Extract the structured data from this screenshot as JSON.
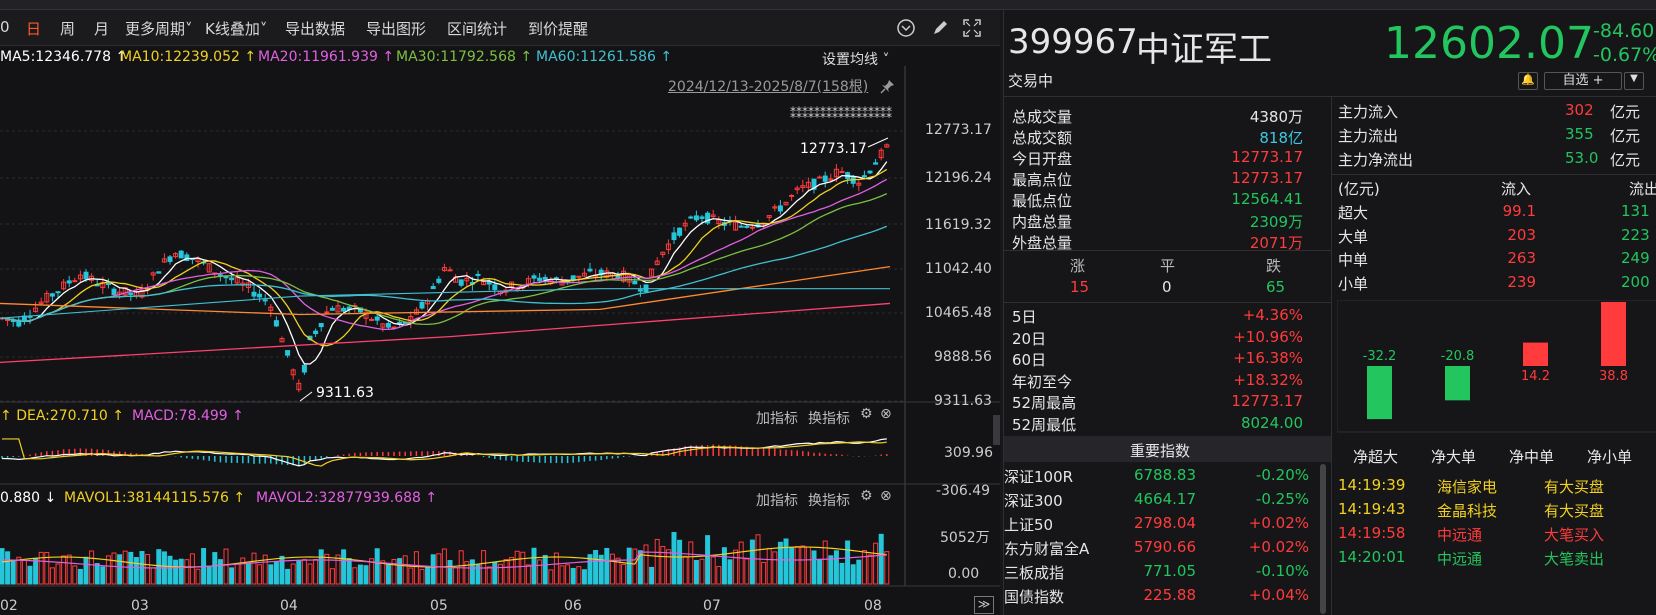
{
  "toolbar": {
    "items": [
      "0",
      "日",
      "周",
      "月",
      "更多周期",
      "K线叠加",
      "导出数据",
      "导出图形",
      "区间统计",
      "到价提醒"
    ],
    "active": "日"
  },
  "chart": {
    "ma_legend": {
      "ma5": "MA5:12346.778",
      "ma10": "MA10:12239.052",
      "ma20": "MA20:11961.939",
      "ma30": "MA30:11792.568",
      "ma60": "MA60:11261.586",
      "setting": "设置均线"
    },
    "range_label": "2024/12/13-2025/8/7(158根)",
    "high_mark": "12773.17",
    "low_mark": "9311.63",
    "price_ticks": [
      "12773.17",
      "12196.24",
      "11619.32",
      "11042.40",
      "10465.48",
      "9888.56",
      "9311.63"
    ],
    "macd_legend": {
      "dea": "DEA:270.710",
      "macd": "MACD:78.499",
      "add": "加指标",
      "swap": "换指标"
    },
    "macd_ticks": [
      "309.96",
      "-306.49"
    ],
    "vol_legend": {
      "vol": "0.880",
      "mavol1": "MAVOL1:38144115.576",
      "mavol2": "MAVOL2:32877939.688",
      "add": "加指标",
      "swap": "换指标"
    },
    "vol_ticks": [
      "5052万",
      "0.00"
    ],
    "x_ticks": [
      "02",
      "03",
      "04",
      "05",
      "06",
      "07",
      "08"
    ],
    "colors": {
      "ma5": "#ffffff",
      "ma10": "#f0d020",
      "ma20": "#e060e0",
      "ma30": "#7cc040",
      "ma60": "#40c0d0",
      "ma120": "#ff8a30",
      "ma250": "#ff4070",
      "up": "#ff3b3b",
      "down": "#26c6da"
    }
  },
  "quote": {
    "code": "399967",
    "name": "中证军工",
    "price": "12602.07",
    "change": "-84.60",
    "pct": "-0.67%",
    "status": "交易中",
    "watch": "自选 +"
  },
  "stats": [
    {
      "label": "总成交量",
      "value": "4380万",
      "color": "white"
    },
    {
      "label": "总成交额",
      "value": "818亿",
      "color": "cyan"
    },
    {
      "label": "今日开盘",
      "value": "12773.17",
      "color": "red"
    },
    {
      "label": "最高点位",
      "value": "12773.17",
      "color": "red"
    },
    {
      "label": "最低点位",
      "value": "12564.41",
      "color": "green"
    },
    {
      "label": "内盘总量",
      "value": "2309万",
      "color": "green"
    },
    {
      "label": "外盘总量",
      "value": "2071万",
      "color": "red"
    }
  ],
  "breadth": {
    "up_label": "涨",
    "flat_label": "平",
    "down_label": "跌",
    "up": "15",
    "flat": "0",
    "down": "65"
  },
  "periods": [
    {
      "label": "5日",
      "value": "+4.36%"
    },
    {
      "label": "20日",
      "value": "+10.96%"
    },
    {
      "label": "60日",
      "value": "+16.38%"
    },
    {
      "label": "年初至今",
      "value": "+18.32%"
    },
    {
      "label": "52周最高",
      "value": "12773.17",
      "color": "red"
    },
    {
      "label": "52周最低",
      "value": "8024.00",
      "color": "green"
    }
  ],
  "capital": {
    "inflow_label": "主力流入",
    "inflow": "302",
    "outflow_label": "主力流出",
    "outflow": "355",
    "net_label": "主力净流出",
    "net": "53.0",
    "unit": "亿元",
    "header": {
      "unit": "(亿元)",
      "in": "流入",
      "out": "流出"
    },
    "rows": [
      {
        "label": "超大",
        "in": "99.1",
        "out": "131"
      },
      {
        "label": "大单",
        "in": "203",
        "out": "223"
      },
      {
        "label": "中单",
        "in": "263",
        "out": "249"
      },
      {
        "label": "小单",
        "in": "239",
        "out": "200"
      }
    ],
    "bars": [
      {
        "label": "净超大",
        "value": -32.2,
        "text": "-32.2"
      },
      {
        "label": "净大单",
        "value": -20.8,
        "text": "-20.8"
      },
      {
        "label": "净中单",
        "value": 14.2,
        "text": "14.2"
      },
      {
        "label": "净小单",
        "value": 38.8,
        "text": "38.8"
      }
    ]
  },
  "index_title": "重要指数",
  "indices": [
    {
      "name": "深证100R",
      "value": "6788.83",
      "pct": "-0.20%",
      "dir": "down"
    },
    {
      "name": "深证300",
      "value": "4664.17",
      "pct": "-0.25%",
      "dir": "down"
    },
    {
      "name": "上证50",
      "value": "2798.04",
      "pct": "+0.02%",
      "dir": "up"
    },
    {
      "name": "东方财富全A",
      "value": "5790.66",
      "pct": "+0.02%",
      "dir": "up"
    },
    {
      "name": "三板成指",
      "value": "771.05",
      "pct": "-0.10%",
      "dir": "down"
    },
    {
      "name": "国债指数",
      "value": "225.88",
      "pct": "+0.04%",
      "dir": "up"
    }
  ],
  "alerts": [
    {
      "time": "14:19:39",
      "stock": "海信家电",
      "event": "有大买盘",
      "color": "yellow"
    },
    {
      "time": "14:19:43",
      "stock": "金晶科技",
      "event": "有大买盘",
      "color": "yellow"
    },
    {
      "time": "14:19:58",
      "stock": "中远通",
      "event": "大笔买入",
      "color": "red"
    },
    {
      "time": "14:20:01",
      "stock": "中远通",
      "event": "大笔卖出",
      "color": "green"
    }
  ]
}
